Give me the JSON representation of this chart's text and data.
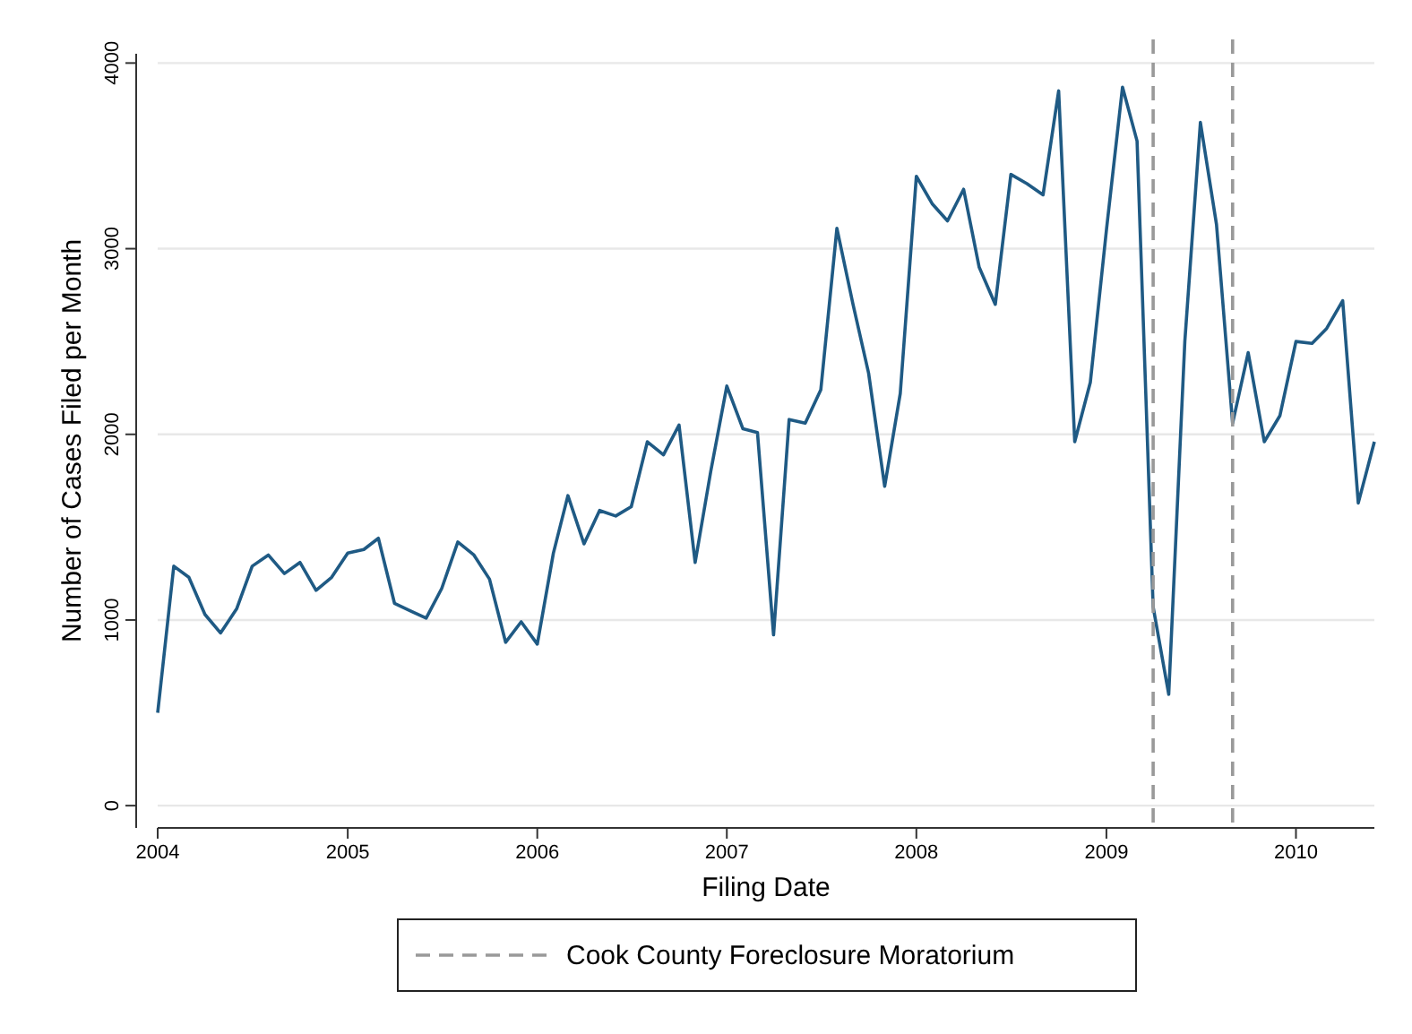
{
  "chart_data": {
    "type": "line",
    "xlabel": "Filing Date",
    "ylabel": "Number of Cases Filed per Month",
    "x": [
      "2004-01",
      "2004-02",
      "2004-03",
      "2004-04",
      "2004-05",
      "2004-06",
      "2004-07",
      "2004-08",
      "2004-09",
      "2004-10",
      "2004-11",
      "2004-12",
      "2005-01",
      "2005-02",
      "2005-03",
      "2005-04",
      "2005-05",
      "2005-06",
      "2005-07",
      "2005-08",
      "2005-09",
      "2005-10",
      "2005-11",
      "2005-12",
      "2006-01",
      "2006-02",
      "2006-03",
      "2006-04",
      "2006-05",
      "2006-06",
      "2006-07",
      "2006-08",
      "2006-09",
      "2006-10",
      "2006-11",
      "2006-12",
      "2007-01",
      "2007-02",
      "2007-03",
      "2007-04",
      "2007-05",
      "2007-06",
      "2007-07",
      "2007-08",
      "2007-09",
      "2007-10",
      "2007-11",
      "2007-12",
      "2008-01",
      "2008-02",
      "2008-03",
      "2008-04",
      "2008-05",
      "2008-06",
      "2008-07",
      "2008-08",
      "2008-09",
      "2008-10",
      "2008-11",
      "2008-12",
      "2009-01",
      "2009-02",
      "2009-03",
      "2009-04",
      "2009-05",
      "2009-06",
      "2009-07",
      "2009-08",
      "2009-09",
      "2009-10",
      "2009-11",
      "2009-12",
      "2010-01",
      "2010-02",
      "2010-03",
      "2010-04",
      "2010-05",
      "2010-06"
    ],
    "series": [
      {
        "color": "#1f5a84",
        "values": [
          500,
          1290,
          1230,
          1030,
          930,
          1060,
          1290,
          1350,
          1250,
          1310,
          1160,
          1230,
          1360,
          1380,
          1440,
          1090,
          1050,
          1010,
          1170,
          1420,
          1350,
          1220,
          880,
          990,
          870,
          1360,
          1670,
          1410,
          1590,
          1560,
          1610,
          1960,
          1890,
          2050,
          1310,
          1800,
          2260,
          2030,
          2010,
          920,
          2080,
          2060,
          2240,
          3110,
          2700,
          2330,
          1720,
          2220,
          3390,
          3240,
          3150,
          3320,
          2900,
          2700,
          3400,
          3350,
          3290,
          3850,
          1960,
          2280,
          3100,
          3870,
          3580,
          1070,
          600,
          2500,
          3680,
          3130,
          2060,
          2440,
          1960,
          2100,
          2500,
          2490,
          2570,
          2720,
          1630,
          1960
        ]
      }
    ],
    "xlim": [
      "2004-01",
      "2010-06"
    ],
    "xticks": [
      {
        "value": "2004-01",
        "label": "2004"
      },
      {
        "value": "2005-01",
        "label": "2005"
      },
      {
        "value": "2006-01",
        "label": "2006"
      },
      {
        "value": "2007-01",
        "label": "2007"
      },
      {
        "value": "2008-01",
        "label": "2008"
      },
      {
        "value": "2009-01",
        "label": "2009"
      },
      {
        "value": "2010-01",
        "label": "2010"
      }
    ],
    "ylim": [
      -120,
      4050
    ],
    "yticks": [
      0,
      1000,
      2000,
      3000,
      4000
    ],
    "grid": "y",
    "ref_lines": [
      {
        "axis": "x",
        "value": "2009-04",
        "label": "Cook County Foreclosure Moratorium",
        "color": "#999999",
        "line_style": "dashed"
      },
      {
        "axis": "x",
        "value": "2009-09",
        "color": "#999999",
        "line_style": "dashed"
      }
    ],
    "legend": "bottom",
    "line_style": "solid",
    "marker": "none"
  }
}
